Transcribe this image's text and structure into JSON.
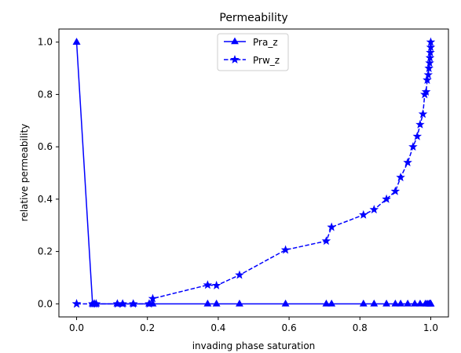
{
  "chart_data": {
    "type": "line",
    "title": "Permeability",
    "xlabel": "invading phase saturation",
    "ylabel": "relative permeability",
    "xlim": [
      -0.05,
      1.05
    ],
    "ylim": [
      -0.05,
      1.05
    ],
    "xticks": [
      0.0,
      0.2,
      0.4,
      0.6,
      0.8,
      1.0
    ],
    "xtick_labels": [
      "0.0",
      "0.2",
      "0.4",
      "0.6",
      "0.8",
      "1.0"
    ],
    "yticks": [
      0.0,
      0.2,
      0.4,
      0.6,
      0.8,
      1.0
    ],
    "ytick_labels": [
      "0.0",
      "0.2",
      "0.4",
      "0.6",
      "0.8",
      "1.0"
    ],
    "grid": false,
    "legend_position": "top-center",
    "series": [
      {
        "name": "Pra_z",
        "color": "#0000ff",
        "line_style": "solid",
        "marker": "triangle",
        "x": [
          0.0,
          0.0,
          0.045,
          0.05,
          0.055,
          0.115,
          0.13,
          0.16,
          0.205,
          0.215,
          0.37,
          0.395,
          0.46,
          0.59,
          0.705,
          0.72,
          0.81,
          0.84,
          0.875,
          0.9,
          0.915,
          0.935,
          0.955,
          0.97,
          0.985,
          0.99,
          0.995,
          0.998,
          1.0,
          1.0
        ],
        "y": [
          1.0,
          1.0,
          0.0,
          0.0,
          0.0,
          0.0,
          0.0,
          0.0,
          0.0,
          0.0,
          0.0,
          0.0,
          0.0,
          0.0,
          0.0,
          0.0,
          0.0,
          0.0,
          0.0,
          0.0,
          0.0,
          0.0,
          0.0,
          0.0,
          0.0,
          0.0,
          0.0,
          0.0,
          0.0,
          0.0
        ]
      },
      {
        "name": "Prw_z",
        "color": "#0000ff",
        "line_style": "dashed",
        "marker": "star",
        "x": [
          0.0,
          0.0,
          0.045,
          0.05,
          0.055,
          0.115,
          0.13,
          0.16,
          0.205,
          0.215,
          0.37,
          0.395,
          0.46,
          0.59,
          0.705,
          0.72,
          0.81,
          0.84,
          0.875,
          0.9,
          0.915,
          0.935,
          0.95,
          0.962,
          0.97,
          0.978,
          0.983,
          0.987,
          0.99,
          0.993,
          0.995,
          0.997,
          0.998,
          0.999,
          1.0,
          1.0
        ],
        "y": [
          0.0,
          0.0,
          0.0,
          0.0,
          0.0,
          0.0,
          0.0,
          0.0,
          0.0,
          0.02,
          0.072,
          0.07,
          0.11,
          0.206,
          0.24,
          0.293,
          0.34,
          0.36,
          0.4,
          0.43,
          0.483,
          0.54,
          0.6,
          0.64,
          0.685,
          0.725,
          0.8,
          0.81,
          0.855,
          0.875,
          0.9,
          0.92,
          0.94,
          0.96,
          0.98,
          1.0
        ]
      }
    ]
  }
}
